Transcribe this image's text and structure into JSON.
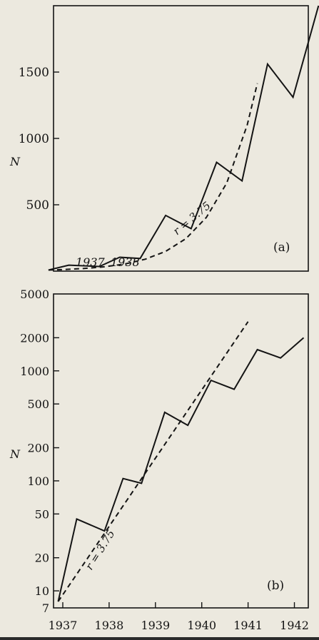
{
  "chart_data": [
    {
      "type": "line",
      "panel_label": "(a)",
      "ylabel": "N",
      "yscale": "linear",
      "ylim": [
        0,
        2000
      ],
      "xlim": [
        1937,
        1942
      ],
      "y_ticks": [
        500,
        1000,
        1500
      ],
      "year_annotations": [
        "1937",
        "1938"
      ],
      "series": [
        {
          "style": "solid",
          "x": [
            1936.9,
            1937.3,
            1937.9,
            1938.3,
            1938.7,
            1939.2,
            1939.7,
            1940.2,
            1940.7,
            1941.2,
            1941.7,
            1942.2
          ],
          "y": [
            8,
            45,
            35,
            105,
            95,
            420,
            320,
            820,
            680,
            1560,
            1310,
            2000
          ]
        },
        {
          "name": "r = 3.75",
          "style": "dashed",
          "x": [
            1936.9,
            1937.2,
            1937.6,
            1938.0,
            1938.4,
            1938.8,
            1939.2,
            1939.6,
            1940.0,
            1940.4,
            1940.8,
            1941.0
          ],
          "y": [
            8,
            12,
            20,
            33,
            54,
            90,
            149,
            245,
            405,
            665,
            1099,
            1415
          ]
        }
      ],
      "annotation": "r = 3.75",
      "grid": false
    },
    {
      "type": "line",
      "panel_label": "(b)",
      "ylabel": "N",
      "yscale": "log",
      "ylim": [
        7,
        5000
      ],
      "xlim": [
        1936.8,
        1942.3
      ],
      "x_ticks": [
        1937,
        1938,
        1939,
        1940,
        1941,
        1942
      ],
      "y_ticks": [
        7,
        10,
        20,
        50,
        100,
        200,
        500,
        1000,
        2000,
        5000
      ],
      "series": [
        {
          "style": "solid",
          "x": [
            1936.9,
            1937.3,
            1937.9,
            1938.3,
            1938.7,
            1939.2,
            1939.7,
            1940.2,
            1940.7,
            1941.2,
            1941.7,
            1942.2
          ],
          "y": [
            8,
            45,
            35,
            105,
            95,
            420,
            320,
            820,
            680,
            1560,
            1310,
            2000
          ]
        },
        {
          "name": "r = 3.75",
          "style": "dashed",
          "x": [
            1936.9,
            1941.0
          ],
          "y": [
            8,
            2800
          ]
        }
      ],
      "annotation": "r = 3.75",
      "grid": false
    }
  ],
  "figure": {
    "paper_color": "#ece9df",
    "ink_color": "#141414"
  }
}
